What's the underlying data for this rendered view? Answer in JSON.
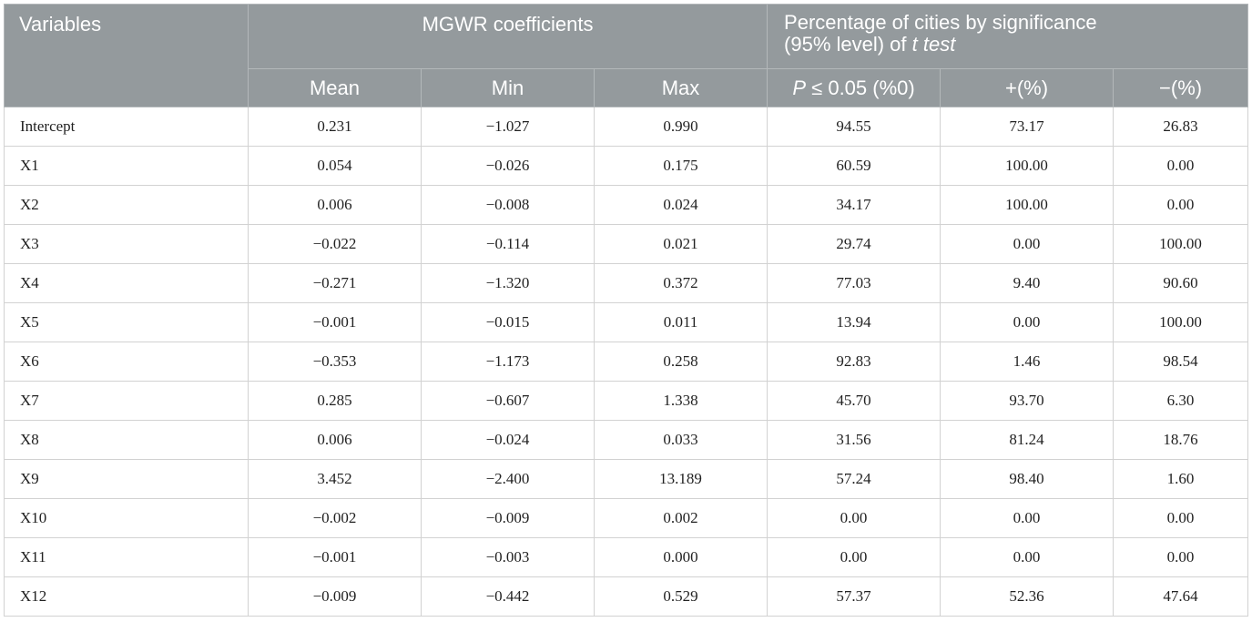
{
  "header": {
    "variables": "Variables",
    "mgwr": "MGWR coefficients",
    "pct_line1": "Percentage of cities by significance",
    "pct_line2_prefix": "(95% level) of ",
    "pct_line2_italic": "t test",
    "sub": {
      "mean": "Mean",
      "min": "Min",
      "max": "Max",
      "p_italic": "P",
      "p_rest": " ≤ 0.05 (%0)",
      "plus": "+(%)",
      "minus": "−(%)"
    }
  },
  "rows": [
    {
      "var": "Intercept",
      "mean": "0.231",
      "min": "−1.027",
      "max": "0.990",
      "p": "94.55",
      "plus": "73.17",
      "minus": "26.83"
    },
    {
      "var": "X1",
      "mean": "0.054",
      "min": "−0.026",
      "max": "0.175",
      "p": "60.59",
      "plus": "100.00",
      "minus": "0.00"
    },
    {
      "var": "X2",
      "mean": "0.006",
      "min": "−0.008",
      "max": "0.024",
      "p": "34.17",
      "plus": "100.00",
      "minus": "0.00"
    },
    {
      "var": "X3",
      "mean": "−0.022",
      "min": "−0.114",
      "max": "0.021",
      "p": "29.74",
      "plus": "0.00",
      "minus": "100.00"
    },
    {
      "var": "X4",
      "mean": "−0.271",
      "min": "−1.320",
      "max": "0.372",
      "p": "77.03",
      "plus": "9.40",
      "minus": "90.60"
    },
    {
      "var": "X5",
      "mean": "−0.001",
      "min": "−0.015",
      "max": "0.011",
      "p": "13.94",
      "plus": "0.00",
      "minus": "100.00"
    },
    {
      "var": "X6",
      "mean": "−0.353",
      "min": "−1.173",
      "max": "0.258",
      "p": "92.83",
      "plus": "1.46",
      "minus": "98.54"
    },
    {
      "var": "X7",
      "mean": "0.285",
      "min": "−0.607",
      "max": "1.338",
      "p": "45.70",
      "plus": "93.70",
      "minus": "6.30"
    },
    {
      "var": "X8",
      "mean": "0.006",
      "min": "−0.024",
      "max": "0.033",
      "p": "31.56",
      "plus": "81.24",
      "minus": "18.76"
    },
    {
      "var": "X9",
      "mean": "3.452",
      "min": "−2.400",
      "max": "13.189",
      "p": "57.24",
      "plus": "98.40",
      "minus": "1.60"
    },
    {
      "var": "X10",
      "mean": "−0.002",
      "min": "−0.009",
      "max": "0.002",
      "p": "0.00",
      "plus": "0.00",
      "minus": "0.00"
    },
    {
      "var": "X11",
      "mean": "−0.001",
      "min": "−0.003",
      "max": "0.000",
      "p": "0.00",
      "plus": "0.00",
      "minus": "0.00"
    },
    {
      "var": "X12",
      "mean": "−0.009",
      "min": "−0.442",
      "max": "0.529",
      "p": "57.37",
      "plus": "52.36",
      "minus": "47.64"
    }
  ]
}
